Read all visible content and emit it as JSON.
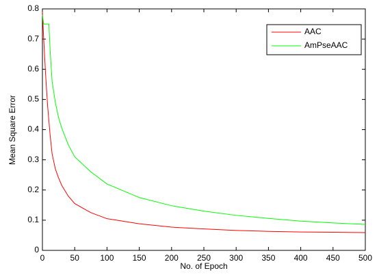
{
  "chart_data": {
    "type": "line",
    "xlabel": "No. of Epoch",
    "ylabel": "Mean Square Error",
    "x": [
      0,
      2,
      5,
      8,
      10,
      12,
      15,
      20,
      25,
      30,
      40,
      50,
      75,
      100,
      150,
      200,
      250,
      300,
      350,
      400,
      450,
      500
    ],
    "series": [
      {
        "name": "AAC",
        "color": "#ff0000",
        "values": [
          0.79,
          0.7,
          0.58,
          0.48,
          0.43,
          0.38,
          0.32,
          0.27,
          0.24,
          0.215,
          0.18,
          0.155,
          0.125,
          0.105,
          0.088,
          0.077,
          0.071,
          0.066,
          0.063,
          0.061,
          0.06,
          0.059
        ]
      },
      {
        "name": "AmPseAAC",
        "color": "#00ff00",
        "values": [
          0.78,
          0.75,
          0.75,
          0.75,
          0.75,
          0.66,
          0.56,
          0.49,
          0.44,
          0.405,
          0.35,
          0.31,
          0.26,
          0.22,
          0.175,
          0.148,
          0.13,
          0.116,
          0.106,
          0.097,
          0.091,
          0.086
        ]
      }
    ],
    "xlim": [
      0,
      500
    ],
    "xticks": [
      0,
      50,
      100,
      150,
      200,
      250,
      300,
      350,
      400,
      450,
      500
    ],
    "ylim": [
      0,
      0.8
    ],
    "yticks": [
      0,
      0.1,
      0.2,
      0.3,
      0.4,
      0.5,
      0.6,
      0.7,
      0.8
    ],
    "legend": "northeast",
    "grid": false
  }
}
